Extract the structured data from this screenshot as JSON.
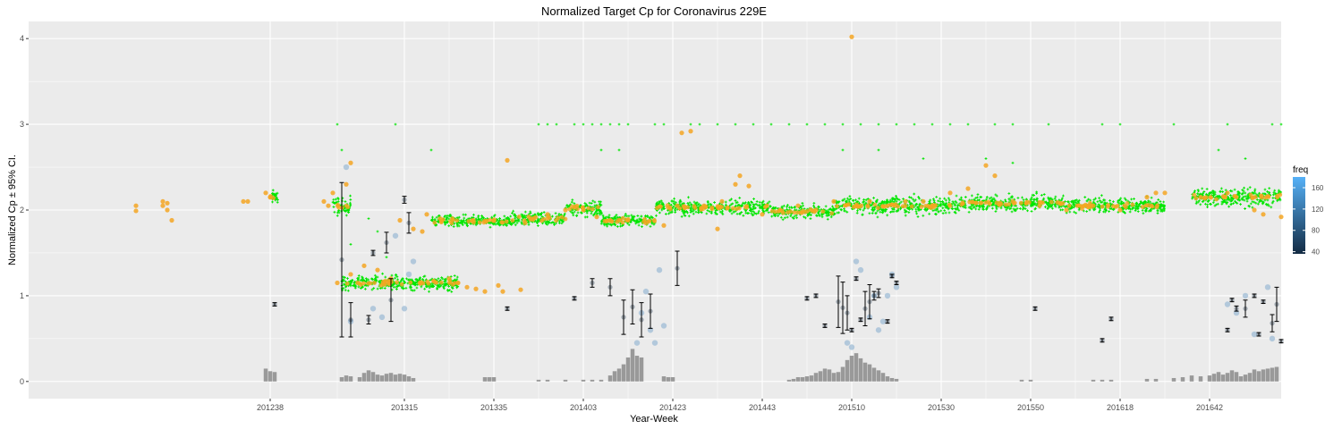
{
  "chart_data": {
    "type": "scatter",
    "title": "Normalized Target Cp for Coronavirus 229E",
    "xlabel": "Year-Week",
    "ylabel": "Normalized Cp ± 95% CI.",
    "x_tick_labels": [
      "201238",
      "201315",
      "201335",
      "201403",
      "201423",
      "201443",
      "201510",
      "201530",
      "201550",
      "201618",
      "201642"
    ],
    "x_tick_positions": [
      27,
      42,
      52,
      62,
      72,
      82,
      92,
      102,
      112,
      122,
      132
    ],
    "xlim": [
      0,
      140
    ],
    "ylim": [
      -0.2,
      4.2
    ],
    "y_ticks": [
      0,
      1,
      2,
      3,
      4
    ],
    "y_tick_labels": [
      "0",
      "1",
      "2",
      "3",
      "4"
    ],
    "grid": true,
    "legend": {
      "title": "freq",
      "position": "right",
      "labels": [
        "160",
        "120",
        "80",
        "40"
      ],
      "values": [
        160,
        120,
        80,
        40
      ],
      "range": [
        36,
        180
      ],
      "colors": {
        "low": "#132b43",
        "high": "#56b1f7"
      }
    },
    "colors": {
      "panel": "#ebebeb",
      "grid_major": "#ffffff",
      "green": "#00e600",
      "orange": "#f5a623",
      "blue": "#9fbcd6",
      "errorbar": "#000000",
      "bars": "#999999"
    },
    "orange_points": [
      [
        12,
        2.05
      ],
      [
        12,
        1.99
      ],
      [
        15,
        2.1
      ],
      [
        15,
        2.05
      ],
      [
        15.5,
        2.08
      ],
      [
        15.5,
        2.0
      ],
      [
        16,
        1.88
      ],
      [
        24,
        2.1
      ],
      [
        24.5,
        2.1
      ],
      [
        26.5,
        2.2
      ],
      [
        27,
        2.15
      ],
      [
        33,
        2.1
      ],
      [
        33.5,
        2.05
      ],
      [
        34,
        2.2
      ],
      [
        35.5,
        2.3
      ],
      [
        36,
        2.55
      ],
      [
        34.5,
        1.15
      ],
      [
        36,
        1.25
      ],
      [
        37.5,
        1.35
      ],
      [
        39,
        1.3
      ],
      [
        40.5,
        1.2
      ],
      [
        41.5,
        1.88
      ],
      [
        43,
        1.78
      ],
      [
        44.5,
        1.95
      ],
      [
        46,
        1.9
      ],
      [
        47,
        1.2
      ],
      [
        48,
        1.15
      ],
      [
        49,
        1.1
      ],
      [
        50,
        1.08
      ],
      [
        51,
        1.05
      ],
      [
        52.5,
        1.12
      ],
      [
        53,
        1.05
      ],
      [
        53.5,
        2.58
      ],
      [
        55,
        1.07
      ],
      [
        55.5,
        1.85
      ],
      [
        58,
        1.95
      ],
      [
        60,
        2.0
      ],
      [
        62,
        2.0
      ],
      [
        63.5,
        1.92
      ],
      [
        65,
        1.88
      ],
      [
        67,
        1.88
      ],
      [
        69,
        1.85
      ],
      [
        71,
        1.82
      ],
      [
        72.5,
        2.05
      ],
      [
        73,
        2.9
      ],
      [
        74,
        2.92
      ],
      [
        75.5,
        2.05
      ],
      [
        77,
        1.78
      ],
      [
        77.5,
        2.1
      ],
      [
        79,
        2.3
      ],
      [
        79.5,
        2.4
      ],
      [
        80.5,
        2.28
      ],
      [
        82,
        1.95
      ],
      [
        82.5,
        2.05
      ],
      [
        84,
        2.0
      ],
      [
        86,
        2.05
      ],
      [
        88,
        2.0
      ],
      [
        90,
        2.1
      ],
      [
        92,
        4.02
      ],
      [
        92.5,
        2.05
      ],
      [
        94,
        2.1
      ],
      [
        96,
        2.05
      ],
      [
        98,
        2.1
      ],
      [
        100,
        2.1
      ],
      [
        103,
        2.2
      ],
      [
        105,
        2.25
      ],
      [
        107,
        2.52
      ],
      [
        108,
        2.4
      ],
      [
        110,
        2.1
      ],
      [
        113,
        2.05
      ],
      [
        116,
        2.0
      ],
      [
        119,
        2.05
      ],
      [
        122,
        2.0
      ],
      [
        125,
        2.15
      ],
      [
        126,
        2.2
      ],
      [
        127,
        2.2
      ],
      [
        131,
        2.15
      ],
      [
        134,
        2.2
      ],
      [
        137,
        2.0
      ],
      [
        138,
        1.95
      ],
      [
        140,
        1.92
      ],
      [
        44,
        1.75
      ]
    ],
    "green_clusters": [
      [
        27,
        28,
        2.15,
        0.07
      ],
      [
        34,
        36,
        2.05,
        0.1
      ],
      [
        35,
        48,
        1.15,
        0.08
      ],
      [
        45,
        54,
        1.87,
        0.06
      ],
      [
        54,
        60,
        1.9,
        0.07
      ],
      [
        60,
        64,
        2.02,
        0.1
      ],
      [
        64,
        70,
        1.88,
        0.07
      ],
      [
        70,
        83,
        2.03,
        0.08
      ],
      [
        83,
        90,
        1.98,
        0.07
      ],
      [
        90,
        104,
        2.05,
        0.1
      ],
      [
        104,
        116,
        2.08,
        0.09
      ],
      [
        116,
        127,
        2.05,
        0.08
      ],
      [
        130,
        140,
        2.15,
        0.1
      ]
    ],
    "green_outliers": [
      [
        34.5,
        3.0
      ],
      [
        35,
        2.7
      ],
      [
        41,
        3.0
      ],
      [
        45,
        2.7
      ],
      [
        57,
        3.0
      ],
      [
        58,
        3.0
      ],
      [
        59,
        3.0
      ],
      [
        61,
        3.0
      ],
      [
        62,
        3.0
      ],
      [
        63,
        3.0
      ],
      [
        64,
        3.0
      ],
      [
        65,
        3.0
      ],
      [
        66,
        3.0
      ],
      [
        67,
        3.0
      ],
      [
        70,
        3.0
      ],
      [
        71,
        3.0
      ],
      [
        74,
        3.0
      ],
      [
        75,
        3.0
      ],
      [
        77,
        3.0
      ],
      [
        79,
        3.0
      ],
      [
        81,
        3.0
      ],
      [
        83,
        3.0
      ],
      [
        85,
        3.0
      ],
      [
        87,
        3.0
      ],
      [
        89,
        3.0
      ],
      [
        91,
        3.0
      ],
      [
        93,
        3.0
      ],
      [
        95,
        3.0
      ],
      [
        97,
        3.0
      ],
      [
        99,
        3.0
      ],
      [
        101,
        3.0
      ],
      [
        103,
        3.0
      ],
      [
        105,
        3.0
      ],
      [
        108,
        3.0
      ],
      [
        110,
        3.0
      ],
      [
        114,
        3.0
      ],
      [
        120,
        3.0
      ],
      [
        122,
        3.0
      ],
      [
        128,
        3.0
      ],
      [
        134,
        3.0
      ],
      [
        139,
        3.0
      ],
      [
        140,
        3.0
      ],
      [
        91,
        2.7
      ],
      [
        95,
        2.7
      ],
      [
        100,
        2.6
      ],
      [
        107,
        2.6
      ],
      [
        110,
        2.55
      ],
      [
        133,
        2.7
      ],
      [
        136,
        2.6
      ],
      [
        38,
        1.9
      ],
      [
        39,
        1.75
      ],
      [
        36,
        1.6
      ],
      [
        40,
        1.45
      ],
      [
        64,
        2.7
      ],
      [
        66,
        2.7
      ]
    ],
    "blue_points": [
      [
        35.5,
        2.5
      ],
      [
        36,
        0.7
      ],
      [
        38.5,
        0.85
      ],
      [
        39.5,
        0.75
      ],
      [
        41,
        1.7
      ],
      [
        42,
        0.85
      ],
      [
        42.5,
        1.25
      ],
      [
        43,
        1.4
      ],
      [
        68,
        0.45
      ],
      [
        68.5,
        0.8
      ],
      [
        69,
        1.05
      ],
      [
        69.5,
        0.6
      ],
      [
        70,
        0.45
      ],
      [
        70.5,
        1.3
      ],
      [
        71,
        0.65
      ],
      [
        91.5,
        0.45
      ],
      [
        92,
        0.4
      ],
      [
        92.5,
        1.4
      ],
      [
        93,
        1.3
      ],
      [
        94,
        0.75
      ],
      [
        94.5,
        1.0
      ],
      [
        95,
        0.6
      ],
      [
        95.5,
        0.7
      ],
      [
        96,
        1.0
      ],
      [
        96.5,
        1.25
      ],
      [
        97,
        1.1
      ],
      [
        134,
        0.9
      ],
      [
        135,
        0.8
      ],
      [
        136,
        1.0
      ],
      [
        137,
        0.55
      ],
      [
        138.5,
        1.1
      ],
      [
        139,
        0.5
      ]
    ],
    "errorbars": [
      [
        27.5,
        0.9,
        0.02
      ],
      [
        35,
        1.42,
        0.9
      ],
      [
        36,
        0.72,
        0.2
      ],
      [
        38,
        0.72,
        0.05
      ],
      [
        38.5,
        1.5,
        0.03
      ],
      [
        40,
        1.62,
        0.12
      ],
      [
        40.5,
        0.95,
        0.25
      ],
      [
        42,
        2.12,
        0.04
      ],
      [
        42.5,
        1.85,
        0.12
      ],
      [
        53.5,
        0.85,
        0.02
      ],
      [
        61,
        0.97,
        0.02
      ],
      [
        63,
        1.15,
        0.05
      ],
      [
        65,
        1.1,
        0.1
      ],
      [
        66.5,
        0.75,
        0.2
      ],
      [
        67.5,
        0.87,
        0.2
      ],
      [
        68.5,
        0.72,
        0.2
      ],
      [
        69.5,
        0.82,
        0.2
      ],
      [
        72.5,
        1.32,
        0.2
      ],
      [
        87,
        0.97,
        0.02
      ],
      [
        88,
        1.0,
        0.02
      ],
      [
        89,
        0.65,
        0.02
      ],
      [
        90.5,
        0.93,
        0.3
      ],
      [
        91,
        0.86,
        0.3
      ],
      [
        91.5,
        0.8,
        0.2
      ],
      [
        92,
        0.6,
        0.02
      ],
      [
        92.5,
        1.2,
        0.02
      ],
      [
        93,
        0.72,
        0.02
      ],
      [
        93.5,
        0.85,
        0.2
      ],
      [
        94,
        0.93,
        0.2
      ],
      [
        94.5,
        1.0,
        0.05
      ],
      [
        95,
        1.03,
        0.05
      ],
      [
        96,
        0.7,
        0.02
      ],
      [
        96.5,
        1.23,
        0.02
      ],
      [
        97,
        1.15,
        0.02
      ],
      [
        112.5,
        0.85,
        0.02
      ],
      [
        120,
        0.48,
        0.02
      ],
      [
        121,
        0.73,
        0.02
      ],
      [
        134,
        0.6,
        0.02
      ],
      [
        134.5,
        0.95,
        0.02
      ],
      [
        135,
        0.85,
        0.03
      ],
      [
        136,
        0.85,
        0.1
      ],
      [
        137,
        1.0,
        0.02
      ],
      [
        137.5,
        0.55,
        0.02
      ],
      [
        138,
        0.93,
        0.02
      ],
      [
        139,
        0.68,
        0.1
      ],
      [
        139.5,
        0.9,
        0.2
      ],
      [
        140,
        0.47,
        0.02
      ]
    ],
    "histogram_bars": [
      [
        26.5,
        0.15
      ],
      [
        27,
        0.12
      ],
      [
        27.5,
        0.11
      ],
      [
        35,
        0.05
      ],
      [
        35.5,
        0.07
      ],
      [
        36,
        0.06
      ],
      [
        37,
        0.05
      ],
      [
        37.5,
        0.1
      ],
      [
        38,
        0.13
      ],
      [
        38.5,
        0.11
      ],
      [
        39,
        0.08
      ],
      [
        39.5,
        0.07
      ],
      [
        40,
        0.09
      ],
      [
        40.5,
        0.1
      ],
      [
        41,
        0.08
      ],
      [
        41.5,
        0.09
      ],
      [
        42,
        0.08
      ],
      [
        42.5,
        0.06
      ],
      [
        43,
        0.04
      ],
      [
        51,
        0.05
      ],
      [
        51.5,
        0.05
      ],
      [
        52,
        0.05
      ],
      [
        57,
        0.02
      ],
      [
        58,
        0.02
      ],
      [
        60,
        0.02
      ],
      [
        62,
        0.02
      ],
      [
        63,
        0.02
      ],
      [
        64,
        0.02
      ],
      [
        65,
        0.07
      ],
      [
        65.5,
        0.12
      ],
      [
        66,
        0.15
      ],
      [
        66.5,
        0.2
      ],
      [
        67,
        0.28
      ],
      [
        67.5,
        0.38
      ],
      [
        68,
        0.3
      ],
      [
        68.5,
        0.28
      ],
      [
        71,
        0.06
      ],
      [
        71.5,
        0.05
      ],
      [
        72,
        0.05
      ],
      [
        85,
        0.02
      ],
      [
        85.5,
        0.03
      ],
      [
        86,
        0.05
      ],
      [
        86.5,
        0.05
      ],
      [
        87,
        0.06
      ],
      [
        87.5,
        0.07
      ],
      [
        88,
        0.1
      ],
      [
        88.5,
        0.12
      ],
      [
        89,
        0.15
      ],
      [
        89.5,
        0.14
      ],
      [
        90,
        0.1
      ],
      [
        90.5,
        0.11
      ],
      [
        91,
        0.17
      ],
      [
        91.5,
        0.25
      ],
      [
        92,
        0.3
      ],
      [
        92.5,
        0.33
      ],
      [
        93,
        0.27
      ],
      [
        93.5,
        0.22
      ],
      [
        94,
        0.2
      ],
      [
        94.5,
        0.16
      ],
      [
        95,
        0.13
      ],
      [
        95.5,
        0.1
      ],
      [
        96,
        0.06
      ],
      [
        96.5,
        0.04
      ],
      [
        97,
        0.03
      ],
      [
        111,
        0.02
      ],
      [
        112,
        0.02
      ],
      [
        119,
        0.02
      ],
      [
        120,
        0.02
      ],
      [
        121,
        0.02
      ],
      [
        125,
        0.03
      ],
      [
        126,
        0.03
      ],
      [
        128,
        0.04
      ],
      [
        129,
        0.05
      ],
      [
        130,
        0.07
      ],
      [
        131,
        0.06
      ],
      [
        132,
        0.07
      ],
      [
        132.5,
        0.09
      ],
      [
        133,
        0.11
      ],
      [
        133.5,
        0.08
      ],
      [
        134,
        0.1
      ],
      [
        134.5,
        0.13
      ],
      [
        135,
        0.11
      ],
      [
        135.5,
        0.06
      ],
      [
        136,
        0.08
      ],
      [
        136.5,
        0.1
      ],
      [
        137,
        0.14
      ],
      [
        137.5,
        0.12
      ],
      [
        138,
        0.14
      ],
      [
        138.5,
        0.15
      ],
      [
        139,
        0.16
      ],
      [
        139.5,
        0.17
      ]
    ]
  }
}
